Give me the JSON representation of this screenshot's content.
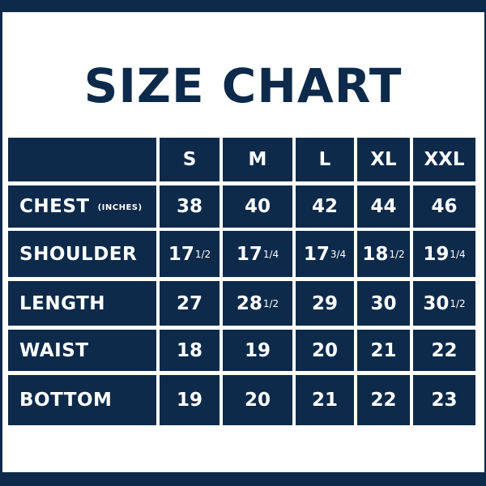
{
  "title": "SIZE CHART",
  "colors": {
    "navy": "#0d2a4a",
    "background": "#ffffff",
    "text": "#ffffff"
  },
  "chart_data": {
    "type": "table",
    "columns": [
      "S",
      "M",
      "L",
      "XL",
      "XXL"
    ],
    "rows": [
      {
        "label": "CHEST",
        "unit": "(INCHES)",
        "values": [
          {
            "whole": "38",
            "frac": ""
          },
          {
            "whole": "40",
            "frac": ""
          },
          {
            "whole": "42",
            "frac": ""
          },
          {
            "whole": "44",
            "frac": ""
          },
          {
            "whole": "46",
            "frac": ""
          }
        ]
      },
      {
        "label": "SHOULDER",
        "unit": "",
        "values": [
          {
            "whole": "17",
            "frac": "1/2"
          },
          {
            "whole": "17",
            "frac": "1/4"
          },
          {
            "whole": "17",
            "frac": "3/4"
          },
          {
            "whole": "18",
            "frac": "1/2"
          },
          {
            "whole": "19",
            "frac": "1/4"
          }
        ]
      },
      {
        "label": "LENGTH",
        "unit": "",
        "values": [
          {
            "whole": "27",
            "frac": ""
          },
          {
            "whole": "28",
            "frac": "1/2"
          },
          {
            "whole": "29",
            "frac": ""
          },
          {
            "whole": "30",
            "frac": ""
          },
          {
            "whole": "30",
            "frac": "1/2"
          }
        ]
      },
      {
        "label": "WAIST",
        "unit": "",
        "values": [
          {
            "whole": "18",
            "frac": ""
          },
          {
            "whole": "19",
            "frac": ""
          },
          {
            "whole": "20",
            "frac": ""
          },
          {
            "whole": "21",
            "frac": ""
          },
          {
            "whole": "22",
            "frac": ""
          }
        ]
      },
      {
        "label": "BOTTOM",
        "unit": "",
        "values": [
          {
            "whole": "19",
            "frac": ""
          },
          {
            "whole": "20",
            "frac": ""
          },
          {
            "whole": "21",
            "frac": ""
          },
          {
            "whole": "22",
            "frac": ""
          },
          {
            "whole": "23",
            "frac": ""
          }
        ]
      }
    ]
  }
}
